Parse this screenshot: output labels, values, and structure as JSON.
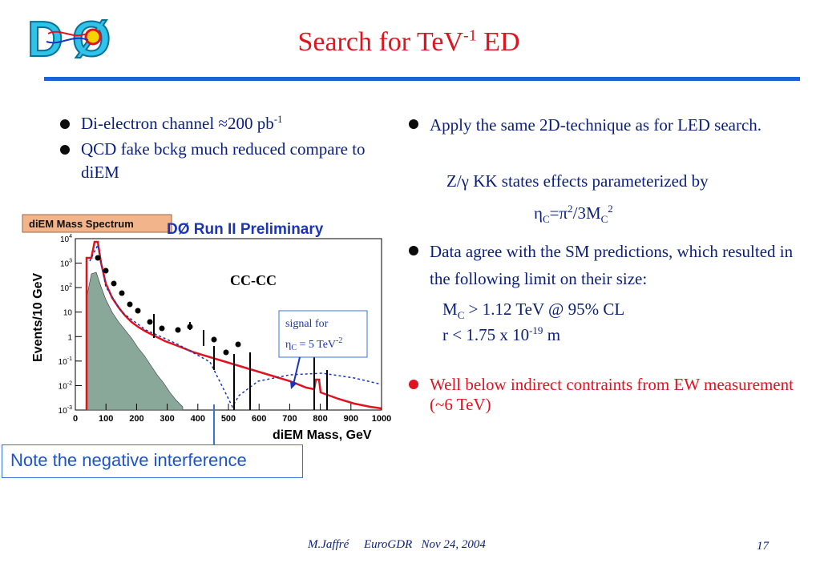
{
  "logo": {
    "text": "DØ",
    "icon": "d0-experiment-logo"
  },
  "title": {
    "main": "Search for TeV",
    "sup": "-1",
    "tail": " ED"
  },
  "left_bullets": [
    {
      "text": "Di-electron channel  ≈200 pb",
      "sup": "-1"
    },
    {
      "text": "QCD fake bckg much reduced compare to diEM",
      "sup": ""
    }
  ],
  "right": {
    "bullet1": "Apply the same 2D-technique as for LED search.",
    "kk_line": "Z/γ KK states effects parameterized by",
    "formula": {
      "eta": "η",
      "sub1": "C",
      "mid": "=π",
      "sup": "2",
      "mid2": "/3M",
      "sub2": "C",
      "sup2": "2"
    },
    "bullet2": "Data agree with the SM predictions, which resulted in the following limit on their size:",
    "limit_mc": {
      "a": "M",
      "sub": "C",
      "b": " > 1.12 TeV @ 95% CL"
    },
    "limit_r": {
      "a": "r < 1.75 x 10",
      "sup": "-19",
      "b": " m"
    },
    "bullet3": "Well below indirect contraints from EW measurement (~6 TeV)"
  },
  "plot": {
    "header_label": "diEM Mass Spectrum",
    "title": "DØ Run II Preliminary",
    "tag": "CC-CC",
    "ylabel": "Events/10 GeV",
    "xlabel": "diEM Mass, GeV",
    "x_ticks": [
      "0",
      "100",
      "200",
      "300",
      "400",
      "500",
      "600",
      "700",
      "800",
      "900",
      "1000"
    ],
    "y_ticks": [
      {
        "base": "10",
        "exp": "4"
      },
      {
        "base": "10",
        "exp": "3"
      },
      {
        "base": "10",
        "exp": "2"
      },
      {
        "base": "10",
        "exp": ""
      },
      {
        "base": "1",
        "exp": ""
      },
      {
        "base": "10",
        "exp": "-1"
      },
      {
        "base": "10",
        "exp": "-2"
      },
      {
        "base": "10",
        "exp": "-3"
      }
    ],
    "signal_label": {
      "a": "signal for",
      "eta": "η",
      "sub": "C",
      "b": " = 5 TeV",
      "sup": "-2"
    },
    "colors": {
      "sm": "#e0141e",
      "signal": "#1b35b8",
      "qcd": "#8aa89a",
      "data": "#000000"
    }
  },
  "note": "Note the negative interference",
  "footer": {
    "text": "M.Jaffré     EuroGDR   Nov 24, 2004",
    "page": "17"
  }
}
